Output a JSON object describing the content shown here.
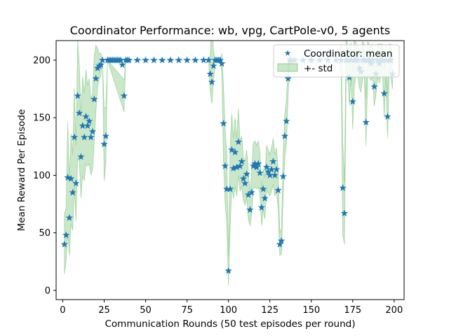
{
  "chart_data": {
    "type": "line",
    "title": "Coordinator Performance: wb, vpg, CartPole-v0, 5 agents",
    "xlabel": "Communication Rounds (50 test episodes per round)",
    "ylabel": "Mean Reward Per Episode",
    "xlim": [
      -4,
      206
    ],
    "ylim": [
      -8,
      217
    ],
    "xticks": [
      0,
      25,
      50,
      75,
      100,
      125,
      150,
      175,
      200
    ],
    "yticks": [
      0,
      50,
      100,
      150,
      200
    ],
    "grid": false,
    "legend_position": "top-right",
    "colors": {
      "mean": "#1f77b4",
      "std_fill": "#2ca02c"
    },
    "legend": {
      "mean": "Coordinator: mean",
      "std": "+- std"
    },
    "mean": [
      [
        1,
        40
      ],
      [
        2,
        48
      ],
      [
        3,
        98
      ],
      [
        4,
        63
      ],
      [
        5,
        97
      ],
      [
        6,
        85
      ],
      [
        7,
        133
      ],
      [
        8,
        93
      ],
      [
        9,
        169
      ],
      [
        10,
        154
      ],
      [
        11,
        116
      ],
      [
        12,
        143
      ],
      [
        13,
        133
      ],
      [
        14,
        151
      ],
      [
        15,
        143
      ],
      [
        16,
        147
      ],
      [
        17,
        133
      ],
      [
        18,
        138
      ],
      [
        19,
        166
      ],
      [
        20,
        184
      ],
      [
        21,
        193
      ],
      [
        22,
        195
      ],
      [
        23,
        196
      ],
      [
        24,
        200
      ],
      [
        25,
        127
      ],
      [
        26,
        134
      ],
      [
        27,
        200
      ],
      [
        28,
        200
      ],
      [
        29,
        200
      ],
      [
        30,
        200
      ],
      [
        31,
        200
      ],
      [
        32,
        200
      ],
      [
        33,
        200
      ],
      [
        34,
        200
      ],
      [
        35,
        200
      ],
      [
        36,
        196
      ],
      [
        37,
        169
      ],
      [
        38,
        200
      ],
      [
        39,
        200
      ],
      [
        40,
        200
      ],
      [
        45,
        200
      ],
      [
        50,
        200
      ],
      [
        55,
        200
      ],
      [
        60,
        200
      ],
      [
        65,
        200
      ],
      [
        70,
        200
      ],
      [
        75,
        200
      ],
      [
        80,
        200
      ],
      [
        85,
        200
      ],
      [
        88,
        200
      ],
      [
        89,
        188
      ],
      [
        90,
        181
      ],
      [
        91,
        195
      ],
      [
        92,
        200
      ],
      [
        93,
        200
      ],
      [
        94,
        200
      ],
      [
        95,
        200
      ],
      [
        96,
        197
      ],
      [
        97,
        145
      ],
      [
        98,
        108
      ],
      [
        99,
        88
      ],
      [
        100,
        17
      ],
      [
        101,
        88
      ],
      [
        102,
        122
      ],
      [
        103,
        106
      ],
      [
        104,
        120
      ],
      [
        105,
        107
      ],
      [
        106,
        129
      ],
      [
        107,
        108
      ],
      [
        108,
        112
      ],
      [
        109,
        97
      ],
      [
        110,
        93
      ],
      [
        111,
        101
      ],
      [
        112,
        83
      ],
      [
        113,
        70
      ],
      [
        114,
        85
      ],
      [
        115,
        108
      ],
      [
        116,
        110
      ],
      [
        117,
        107
      ],
      [
        118,
        110
      ],
      [
        119,
        102
      ],
      [
        120,
        72
      ],
      [
        121,
        88
      ],
      [
        122,
        80
      ],
      [
        123,
        107
      ],
      [
        124,
        103
      ],
      [
        125,
        100
      ],
      [
        126,
        105
      ],
      [
        127,
        112
      ],
      [
        128,
        100
      ],
      [
        129,
        105
      ],
      [
        130,
        87
      ],
      [
        131,
        40
      ],
      [
        132,
        43
      ],
      [
        133,
        99
      ],
      [
        134,
        134
      ],
      [
        135,
        147
      ],
      [
        136,
        184
      ],
      [
        137,
        200
      ],
      [
        138,
        200
      ],
      [
        140,
        200
      ],
      [
        145,
        200
      ],
      [
        150,
        200
      ],
      [
        155,
        200
      ],
      [
        160,
        200
      ],
      [
        165,
        200
      ],
      [
        168,
        200
      ],
      [
        169,
        89
      ],
      [
        170,
        67
      ],
      [
        171,
        200
      ],
      [
        172,
        200
      ],
      [
        173,
        185
      ],
      [
        174,
        200
      ],
      [
        175,
        164
      ],
      [
        176,
        200
      ],
      [
        177,
        200
      ],
      [
        178,
        200
      ],
      [
        179,
        193
      ],
      [
        180,
        190
      ],
      [
        181,
        200
      ],
      [
        182,
        200
      ],
      [
        183,
        146
      ],
      [
        184,
        200
      ],
      [
        185,
        200
      ],
      [
        186,
        197
      ],
      [
        187,
        200
      ],
      [
        188,
        177
      ],
      [
        189,
        188
      ],
      [
        190,
        200
      ],
      [
        191,
        197
      ],
      [
        192,
        200
      ],
      [
        193,
        200
      ],
      [
        194,
        171
      ],
      [
        195,
        200
      ],
      [
        196,
        151
      ],
      [
        197,
        200
      ],
      [
        198,
        200
      ],
      [
        199,
        188
      ]
    ],
    "std_lower": [
      [
        1,
        14
      ],
      [
        2,
        25
      ],
      [
        3,
        50
      ],
      [
        4,
        30
      ],
      [
        5,
        58
      ],
      [
        6,
        52
      ],
      [
        7,
        90
      ],
      [
        8,
        60
      ],
      [
        9,
        115
      ],
      [
        10,
        112
      ],
      [
        11,
        80
      ],
      [
        12,
        100
      ],
      [
        13,
        95
      ],
      [
        14,
        110
      ],
      [
        15,
        108
      ],
      [
        16,
        110
      ],
      [
        17,
        100
      ],
      [
        18,
        105
      ],
      [
        19,
        128
      ],
      [
        20,
        155
      ],
      [
        21,
        176
      ],
      [
        22,
        184
      ],
      [
        23,
        186
      ],
      [
        24,
        200
      ],
      [
        25,
        95
      ],
      [
        26,
        110
      ],
      [
        27,
        200
      ],
      [
        37,
        155
      ],
      [
        38,
        200
      ],
      [
        88,
        200
      ],
      [
        89,
        172
      ],
      [
        90,
        162
      ],
      [
        91,
        182
      ],
      [
        92,
        200
      ],
      [
        95,
        200
      ],
      [
        96,
        188
      ],
      [
        97,
        112
      ],
      [
        98,
        75
      ],
      [
        99,
        58
      ],
      [
        100,
        4
      ],
      [
        101,
        52
      ],
      [
        102,
        90
      ],
      [
        103,
        80
      ],
      [
        104,
        90
      ],
      [
        105,
        82
      ],
      [
        106,
        100
      ],
      [
        107,
        86
      ],
      [
        108,
        90
      ],
      [
        109,
        78
      ],
      [
        110,
        74
      ],
      [
        111,
        80
      ],
      [
        112,
        62
      ],
      [
        113,
        56
      ],
      [
        114,
        66
      ],
      [
        115,
        88
      ],
      [
        116,
        90
      ],
      [
        117,
        88
      ],
      [
        118,
        90
      ],
      [
        119,
        84
      ],
      [
        120,
        56
      ],
      [
        121,
        70
      ],
      [
        122,
        62
      ],
      [
        123,
        88
      ],
      [
        124,
        84
      ],
      [
        125,
        82
      ],
      [
        126,
        86
      ],
      [
        127,
        92
      ],
      [
        128,
        82
      ],
      [
        129,
        86
      ],
      [
        130,
        70
      ],
      [
        131,
        30
      ],
      [
        132,
        32
      ],
      [
        133,
        80
      ],
      [
        134,
        115
      ],
      [
        135,
        128
      ],
      [
        136,
        168
      ],
      [
        137,
        200
      ],
      [
        167,
        200
      ],
      [
        168,
        186
      ],
      [
        169,
        48
      ],
      [
        170,
        40
      ],
      [
        171,
        178
      ],
      [
        172,
        190
      ],
      [
        173,
        160
      ],
      [
        174,
        185
      ],
      [
        175,
        140
      ],
      [
        176,
        178
      ],
      [
        177,
        186
      ],
      [
        178,
        188
      ],
      [
        179,
        176
      ],
      [
        180,
        172
      ],
      [
        181,
        184
      ],
      [
        182,
        186
      ],
      [
        183,
        125
      ],
      [
        184,
        184
      ],
      [
        185,
        186
      ],
      [
        186,
        182
      ],
      [
        187,
        186
      ],
      [
        188,
        160
      ],
      [
        189,
        170
      ],
      [
        190,
        186
      ],
      [
        191,
        180
      ],
      [
        192,
        186
      ],
      [
        193,
        186
      ],
      [
        194,
        150
      ],
      [
        195,
        186
      ],
      [
        196,
        132
      ],
      [
        197,
        186
      ],
      [
        198,
        186
      ],
      [
        199,
        175
      ]
    ],
    "std_upper": [
      [
        1,
        66
      ],
      [
        2,
        72
      ],
      [
        3,
        146
      ],
      [
        4,
        96
      ],
      [
        5,
        136
      ],
      [
        6,
        118
      ],
      [
        7,
        176
      ],
      [
        8,
        126
      ],
      [
        9,
        217
      ],
      [
        10,
        196
      ],
      [
        11,
        152
      ],
      [
        12,
        186
      ],
      [
        13,
        171
      ],
      [
        14,
        192
      ],
      [
        15,
        178
      ],
      [
        16,
        184
      ],
      [
        17,
        166
      ],
      [
        18,
        171
      ],
      [
        19,
        204
      ],
      [
        20,
        213
      ],
      [
        21,
        210
      ],
      [
        22,
        206
      ],
      [
        23,
        206
      ],
      [
        24,
        200
      ],
      [
        25,
        159
      ],
      [
        26,
        158
      ],
      [
        27,
        200
      ],
      [
        37,
        183
      ],
      [
        38,
        200
      ],
      [
        88,
        200
      ],
      [
        89,
        204
      ],
      [
        90,
        236
      ],
      [
        91,
        208
      ],
      [
        92,
        200
      ],
      [
        95,
        200
      ],
      [
        96,
        206
      ],
      [
        97,
        178
      ],
      [
        98,
        141
      ],
      [
        99,
        118
      ],
      [
        100,
        30
      ],
      [
        101,
        124
      ],
      [
        102,
        154
      ],
      [
        103,
        132
      ],
      [
        104,
        150
      ],
      [
        105,
        132
      ],
      [
        106,
        158
      ],
      [
        107,
        130
      ],
      [
        108,
        134
      ],
      [
        109,
        116
      ],
      [
        110,
        112
      ],
      [
        111,
        122
      ],
      [
        112,
        104
      ],
      [
        113,
        84
      ],
      [
        114,
        104
      ],
      [
        115,
        128
      ],
      [
        116,
        130
      ],
      [
        117,
        126
      ],
      [
        118,
        130
      ],
      [
        119,
        120
      ],
      [
        120,
        88
      ],
      [
        121,
        106
      ],
      [
        122,
        98
      ],
      [
        123,
        126
      ],
      [
        124,
        122
      ],
      [
        125,
        118
      ],
      [
        126,
        124
      ],
      [
        127,
        132
      ],
      [
        128,
        118
      ],
      [
        129,
        124
      ],
      [
        130,
        104
      ],
      [
        131,
        50
      ],
      [
        132,
        54
      ],
      [
        133,
        118
      ],
      [
        134,
        153
      ],
      [
        135,
        166
      ],
      [
        136,
        200
      ],
      [
        137,
        200
      ],
      [
        167,
        200
      ],
      [
        168,
        214
      ],
      [
        169,
        130
      ],
      [
        170,
        94
      ],
      [
        171,
        222
      ],
      [
        172,
        210
      ],
      [
        173,
        210
      ],
      [
        174,
        215
      ],
      [
        175,
        188
      ],
      [
        176,
        222
      ],
      [
        177,
        214
      ],
      [
        178,
        212
      ],
      [
        179,
        210
      ],
      [
        180,
        208
      ],
      [
        181,
        216
      ],
      [
        182,
        214
      ],
      [
        183,
        167
      ],
      [
        184,
        216
      ],
      [
        185,
        214
      ],
      [
        186,
        212
      ],
      [
        187,
        214
      ],
      [
        188,
        194
      ],
      [
        189,
        206
      ],
      [
        190,
        214
      ],
      [
        191,
        214
      ],
      [
        192,
        214
      ],
      [
        193,
        214
      ],
      [
        194,
        192
      ],
      [
        195,
        214
      ],
      [
        196,
        170
      ],
      [
        197,
        214
      ],
      [
        198,
        214
      ],
      [
        199,
        201
      ]
    ]
  }
}
